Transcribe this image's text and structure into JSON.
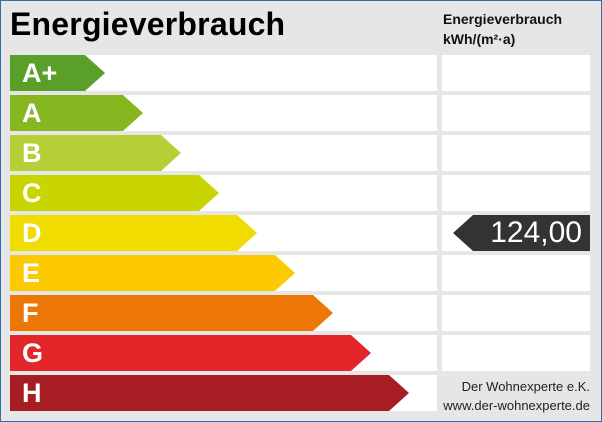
{
  "header": {
    "title": "Energieverbrauch",
    "column_title": "Energieverbrauch",
    "column_unit": "kWh/(m²·a)"
  },
  "chart_data": {
    "type": "bar",
    "categories": [
      "A+",
      "A",
      "B",
      "C",
      "D",
      "E",
      "F",
      "G",
      "H"
    ],
    "colors": [
      "#5b9f2b",
      "#86b620",
      "#b6cf36",
      "#c9d500",
      "#f0dc00",
      "#fdc900",
      "#ec7706",
      "#e3262a",
      "#a61d24"
    ],
    "value": "124,00",
    "value_class": "D",
    "marker_color": "#333333"
  },
  "footer": {
    "company": "Der Wohnexperte e.K.",
    "website": "www.der-wohnexperte.de"
  }
}
